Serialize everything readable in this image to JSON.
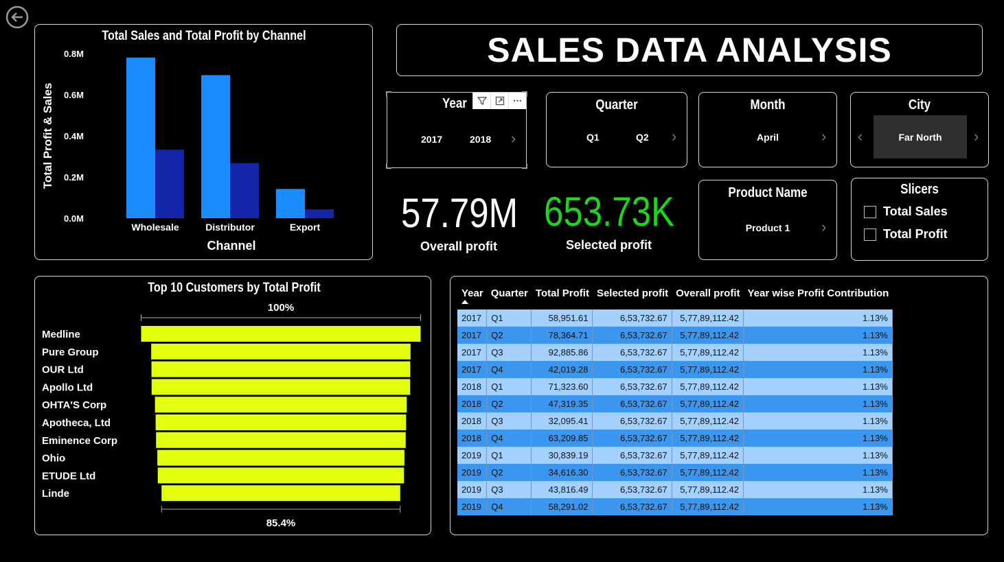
{
  "title": "SALES DATA ANALYSIS",
  "slicers": {
    "year": {
      "title": "Year",
      "values": [
        "2017",
        "2018"
      ],
      "icons": [
        "filter-icon",
        "expand-icon",
        "more-icon"
      ]
    },
    "quarter": {
      "title": "Quarter",
      "values": [
        "Q1",
        "Q2"
      ]
    },
    "month": {
      "title": "Month",
      "values": [
        "April"
      ]
    },
    "city": {
      "title": "City",
      "values": [
        "Far North"
      ]
    },
    "product": {
      "title": "Product Name",
      "values": [
        "Product 1"
      ]
    },
    "measures": {
      "title": "Slicers",
      "options": [
        "Total Sales",
        "Total Profit"
      ]
    }
  },
  "kpis": {
    "overall": {
      "value": "57.79M",
      "label": "Overall profit",
      "color": "#ffffff"
    },
    "selected": {
      "value": "653.73K",
      "label": "Selected profit",
      "color": "#1ed51e"
    }
  },
  "charts": {
    "channel": {
      "title": "Total Sales and Total Profit by Channel",
      "ticks": [
        "0.8M",
        "0.6M",
        "0.4M",
        "0.2M",
        "0.0M"
      ]
    },
    "customers": {
      "title": "Top 10 Customers by Total Profit",
      "top_pct": "100%",
      "bottom_pct": "85.4%"
    }
  },
  "chart_data": [
    {
      "type": "bar",
      "title": "Total Sales and Total Profit by Channel",
      "xlabel": "Channel",
      "ylabel": "Total Profit & Sales",
      "categories": [
        "Wholesale",
        "Distributor",
        "Export"
      ],
      "series": [
        {
          "values": [
            780000,
            695000,
            142000
          ],
          "color": "#1a8cff"
        },
        {
          "values": [
            333000,
            268000,
            43000
          ],
          "color": "#1326a8"
        }
      ],
      "ylim": [
        0,
        800000
      ],
      "grid": false
    },
    {
      "type": "bar",
      "title": "Top 10 Customers by Total Profit",
      "categories": [
        "Medline",
        "Pure Group",
        "OUR Ltd",
        "Apollo Ltd",
        "OHTA'S Corp",
        "Apotheca, Ltd",
        "Eminence Corp",
        "Ohio",
        "ETUDE Ltd",
        "Linde"
      ],
      "values": [
        100,
        92.8,
        92.6,
        92.5,
        90.1,
        89.6,
        89.3,
        88.4,
        88.1,
        85.4
      ],
      "ylim": [
        0,
        100
      ],
      "color": "#e1ff0f"
    }
  ],
  "table": {
    "headers": [
      "Year",
      "Quarter",
      "Total Profit",
      "Selected profit",
      "Overall profit",
      "Year wise Profit Contribution"
    ],
    "rows": [
      [
        "2017",
        "Q1",
        "58,951.61",
        "6,53,732.67",
        "5,77,89,112.42",
        "1.13%"
      ],
      [
        "2017",
        "Q2",
        "78,364.71",
        "6,53,732.67",
        "5,77,89,112.42",
        "1.13%"
      ],
      [
        "2017",
        "Q3",
        "92,885.86",
        "6,53,732.67",
        "5,77,89,112.42",
        "1.13%"
      ],
      [
        "2017",
        "Q4",
        "42,019.28",
        "6,53,732.67",
        "5,77,89,112.42",
        "1.13%"
      ],
      [
        "2018",
        "Q1",
        "71,323.60",
        "6,53,732.67",
        "5,77,89,112.42",
        "1.13%"
      ],
      [
        "2018",
        "Q2",
        "47,319.35",
        "6,53,732.67",
        "5,77,89,112.42",
        "1.13%"
      ],
      [
        "2018",
        "Q3",
        "32,095.41",
        "6,53,732.67",
        "5,77,89,112.42",
        "1.13%"
      ],
      [
        "2018",
        "Q4",
        "63,209.85",
        "6,53,732.67",
        "5,77,89,112.42",
        "1.13%"
      ],
      [
        "2019",
        "Q1",
        "30,839.19",
        "6,53,732.67",
        "5,77,89,112.42",
        "1.13%"
      ],
      [
        "2019",
        "Q2",
        "34,616.30",
        "6,53,732.67",
        "5,77,89,112.42",
        "1.13%"
      ],
      [
        "2019",
        "Q3",
        "43,816.49",
        "6,53,732.67",
        "5,77,89,112.42",
        "1.13%"
      ],
      [
        "2019",
        "Q4",
        "58,291.02",
        "6,53,732.67",
        "5,77,89,112.42",
        "1.13%"
      ]
    ]
  }
}
